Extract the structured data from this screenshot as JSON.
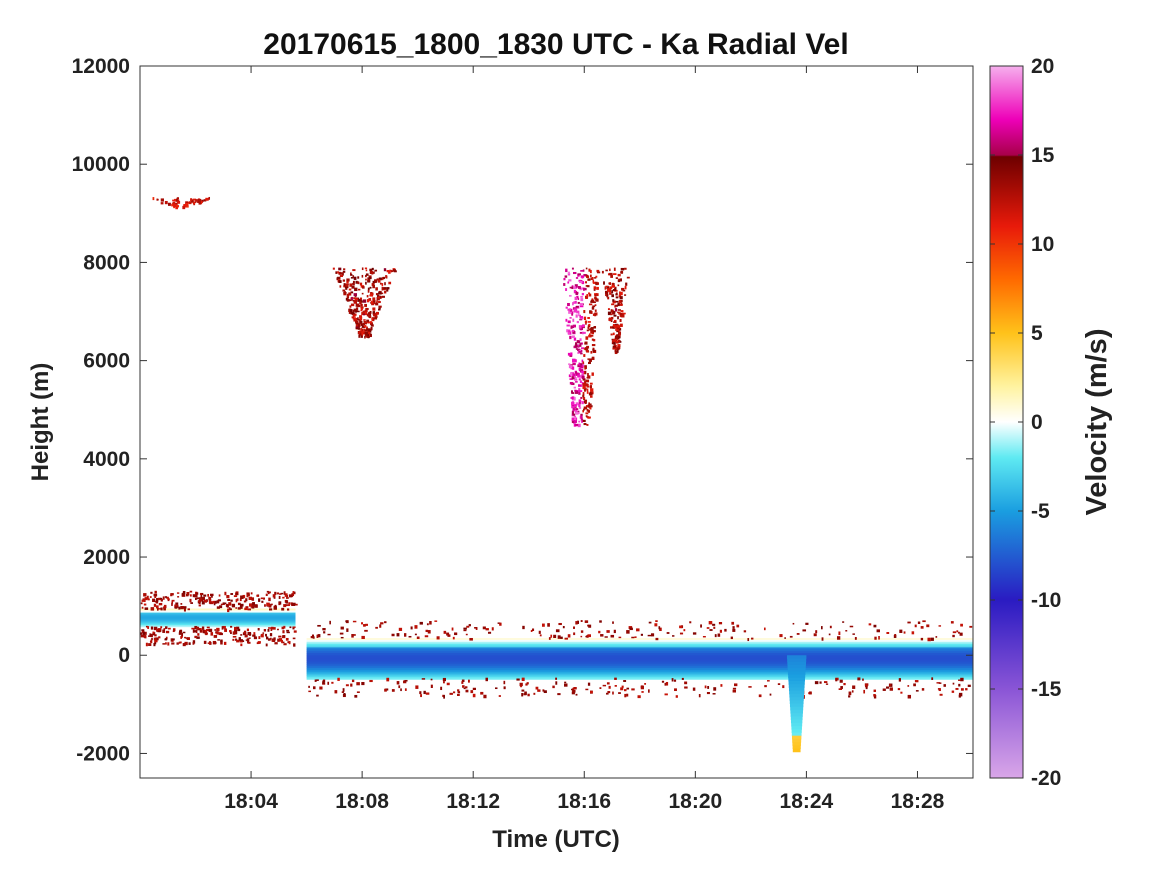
{
  "chart_data": {
    "type": "heatmap",
    "title": "20170615_1800_1830 UTC - Ka Radial Vel",
    "xlabel": "Time (UTC)",
    "ylabel": "Height (m)",
    "x_ticks": [
      "18:04",
      "18:08",
      "18:12",
      "18:16",
      "18:20",
      "18:24",
      "18:28"
    ],
    "x_tick_minutes": [
      4,
      8,
      12,
      16,
      20,
      24,
      28
    ],
    "xlim_minutes": [
      0,
      30
    ],
    "y_ticks": [
      -2000,
      0,
      2000,
      4000,
      6000,
      8000,
      10000,
      12000
    ],
    "ylim": [
      -2500,
      12000
    ],
    "grid": false,
    "colorbar": {
      "label": "Velocity (m/s)",
      "ticks": [
        -20,
        -15,
        -10,
        -5,
        0,
        5,
        10,
        15,
        20
      ],
      "range": [
        -20,
        20
      ],
      "stops": [
        {
          "value": -20,
          "color": "#d9a6e8"
        },
        {
          "value": -15,
          "color": "#8a55d6"
        },
        {
          "value": -10,
          "color": "#2a1bc2"
        },
        {
          "value": -5,
          "color": "#1a9ee0"
        },
        {
          "value": -2,
          "color": "#5feaf2"
        },
        {
          "value": 0,
          "color": "#ffffff"
        },
        {
          "value": 2,
          "color": "#fff3a0"
        },
        {
          "value": 5,
          "color": "#ffc21a"
        },
        {
          "value": 8,
          "color": "#ff6a00"
        },
        {
          "value": 11,
          "color": "#e81a0a"
        },
        {
          "value": 14.9,
          "color": "#6e0000"
        },
        {
          "value": 15,
          "color": "#a8004a"
        },
        {
          "value": 17,
          "color": "#ee00b8"
        },
        {
          "value": 20,
          "color": "#f6b0ee"
        }
      ]
    },
    "features": [
      {
        "name": "cirrus-fragments",
        "t_start": 0,
        "t_end": 2.8,
        "h_bottom": 9150,
        "h_top": 9350,
        "velocity": 12
      },
      {
        "name": "mid-level-echo-1",
        "t_start": 6.9,
        "t_end": 9.2,
        "h_bottom": 6500,
        "h_top": 7900,
        "velocity": 13
      },
      {
        "name": "convective-core",
        "t_start": 15.2,
        "t_end": 16.5,
        "h_bottom": 4700,
        "h_top": 7900,
        "velocity": 17
      },
      {
        "name": "mid-level-echo-2",
        "t_start": 16.6,
        "t_end": 17.6,
        "h_bottom": 6200,
        "h_top": 7900,
        "velocity": 13
      },
      {
        "name": "low-layer-early",
        "t_start": 0,
        "t_end": 5.6,
        "h_bottom": 600,
        "h_top": 950,
        "velocity": -4
      },
      {
        "name": "surface-band",
        "t_start": 6.0,
        "t_end": 30,
        "h_bottom": -450,
        "h_top": 350,
        "velocity": -7
      },
      {
        "name": "dip-1",
        "t_start": 23.3,
        "t_end": 24.0,
        "h_bottom": -1900,
        "h_top": 0,
        "velocity": -2
      }
    ]
  }
}
